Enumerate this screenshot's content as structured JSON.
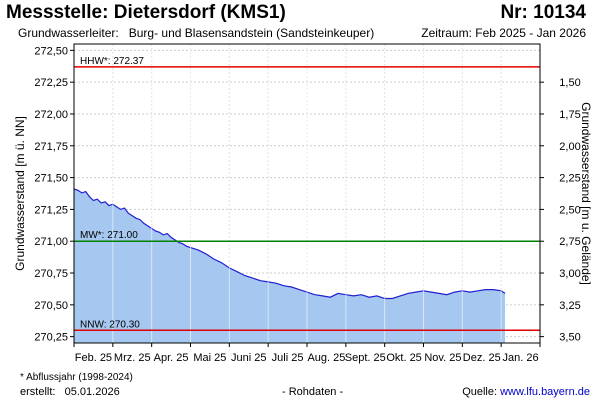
{
  "header": {
    "title": "Messstelle: Dietersdorf (KMS1)",
    "station_nr": "Nr: 10134",
    "aquifer_label": "Grundwasserleiter:",
    "aquifer_value": "Burg- und Blasensandstein (Sandsteinkeuper)",
    "period": "Zeitraum: Feb 2025 - Jan 2026"
  },
  "footer": {
    "footnote": "* Abflussjahr (1998-2024)",
    "created_label": "erstellt:",
    "created_date": "05.01.2026",
    "raw_data": "- Rohdaten -",
    "source_label": "Quelle:",
    "source_link": "www.lfu.bayern.de"
  },
  "chart_data": {
    "type": "area",
    "ylabel": "Grundwasserstand [m ü. NN]",
    "ylabel_right": "Grundwasserstand [m u. Gelände]",
    "ylim": [
      270.2,
      272.55
    ],
    "y_ticks": [
      270.25,
      270.5,
      270.75,
      271.0,
      271.25,
      271.5,
      271.75,
      272.0,
      272.25,
      272.5
    ],
    "y_tick_labels": [
      "270,25",
      "270,50",
      "270,75",
      "271,00",
      "271,25",
      "271,50",
      "271,75",
      "272,00",
      "272,25",
      "272,50"
    ],
    "right_ticks": [
      3.5,
      3.25,
      3.0,
      2.75,
      2.5,
      2.25,
      2.0,
      1.75,
      1.5
    ],
    "right_tick_labels": [
      "3,50",
      "3,25",
      "3,00",
      "2,75",
      "2,50",
      "2,25",
      "2,00",
      "1,75",
      "1,50"
    ],
    "ground_level": 273.75,
    "xlim": [
      0,
      12
    ],
    "x_ticks": [
      0,
      1,
      2,
      3,
      4,
      5,
      6,
      7,
      8,
      9,
      10,
      11,
      12
    ],
    "x_tick_labels": [
      "Feb. 25",
      "Mrz. 25",
      "Apr. 25",
      "Mai 25",
      "Juni 25",
      "Juli 25",
      "Aug. 25",
      "Sept. 25",
      "Okt. 25",
      "Nov. 25",
      "Dez. 25",
      "Jan. 26"
    ],
    "grid": true,
    "fill_color": "#a6c8f0",
    "line_color": "#1f1fd0",
    "reference_lines": [
      {
        "label": "HHW*: 272.37",
        "value": 272.37,
        "color": "#e00000"
      },
      {
        "label": "MW*: 271.00",
        "value": 271.0,
        "color": "#008000"
      },
      {
        "label": "NNW: 270.30",
        "value": 270.3,
        "color": "#e00000"
      }
    ],
    "series": [
      {
        "x": [
          0,
          0.1,
          0.2,
          0.3,
          0.4,
          0.5,
          0.6,
          0.7,
          0.8,
          0.9,
          1.0,
          1.1,
          1.2,
          1.3,
          1.4,
          1.5,
          1.6,
          1.7,
          1.8,
          1.9,
          2.0,
          2.1,
          2.2,
          2.3,
          2.4,
          2.5,
          2.6,
          2.7,
          2.8,
          2.9,
          3.0,
          3.2,
          3.4,
          3.6,
          3.8,
          4.0,
          4.2,
          4.4,
          4.6,
          4.8,
          5.0,
          5.2,
          5.4,
          5.6,
          5.8,
          6.0,
          6.2,
          6.4,
          6.6,
          6.8,
          7.0,
          7.2,
          7.4,
          7.6,
          7.8,
          8.0,
          8.2,
          8.4,
          8.6,
          8.8,
          9.0,
          9.2,
          9.4,
          9.6,
          9.8,
          10.0,
          10.2,
          10.4,
          10.6,
          10.8,
          11.0,
          11.1
        ],
        "values": [
          271.41,
          271.4,
          271.38,
          271.39,
          271.35,
          271.32,
          271.33,
          271.3,
          271.31,
          271.28,
          271.29,
          271.27,
          271.25,
          271.26,
          271.22,
          271.2,
          271.18,
          271.17,
          271.14,
          271.12,
          271.1,
          271.08,
          271.07,
          271.05,
          271.06,
          271.03,
          271.01,
          270.99,
          270.98,
          270.96,
          270.95,
          270.93,
          270.9,
          270.86,
          270.83,
          270.79,
          270.76,
          270.73,
          270.71,
          270.69,
          270.68,
          270.67,
          270.65,
          270.64,
          270.62,
          270.6,
          270.58,
          270.57,
          270.56,
          270.59,
          270.58,
          270.57,
          270.58,
          270.56,
          270.57,
          270.55,
          270.55,
          270.57,
          270.59,
          270.6,
          270.61,
          270.6,
          270.59,
          270.58,
          270.6,
          270.61,
          270.6,
          270.61,
          270.62,
          270.62,
          270.61,
          270.59
        ]
      }
    ]
  }
}
